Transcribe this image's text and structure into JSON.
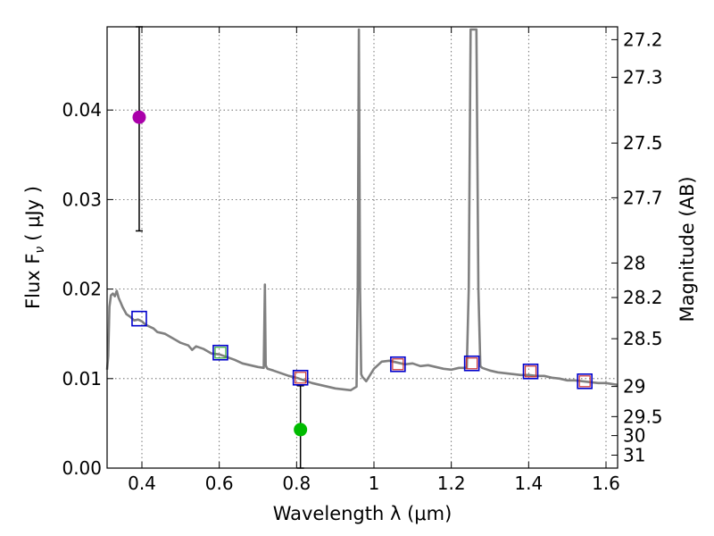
{
  "chart_data": {
    "type": "scatter",
    "xlabel": "Wavelength  λ (μm)",
    "ylabel": "Flux  F",
    "ylabel_sub": "ν",
    "ylabel_unit": "( μJy )",
    "y2label": "Magnitude (AB)",
    "xlim": [
      0.31,
      1.63
    ],
    "ylim": [
      0.0,
      0.0493
    ],
    "x_ticks": [
      0.4,
      0.6,
      0.8,
      1.0,
      1.2,
      1.4,
      1.6
    ],
    "x_tick_labels": [
      "0.4",
      "0.6",
      "0.8",
      "1",
      "1.2",
      "1.4",
      "1.6"
    ],
    "y_ticks": [
      0.0,
      0.01,
      0.02,
      0.03,
      0.04
    ],
    "y_tick_labels": [
      "0.00",
      "0.01",
      "0.02",
      "0.03",
      "0.04"
    ],
    "mag_ticks": [
      27.2,
      27.3,
      27.5,
      27.7,
      28,
      28.2,
      28.5,
      29,
      29.5,
      30,
      31
    ],
    "mag_tick_labels": [
      "27.2",
      "27.3",
      "27.5",
      "27.7",
      "28",
      "28.2",
      "28.5",
      "29",
      "29.5",
      "30",
      "31"
    ],
    "grid": true,
    "colors": {
      "model": "#808080",
      "photometry_box": "#0000cc",
      "model_band_box": "#cc3333",
      "green_model_box": "#33aa33",
      "magenta_point": "#aa00aa",
      "green_point": "#00bb00",
      "errorbar": "#000000"
    },
    "series": [
      {
        "name": "model-spectrum",
        "style": "line",
        "x": [
          0.31,
          0.313,
          0.316,
          0.32,
          0.325,
          0.33,
          0.335,
          0.34,
          0.345,
          0.35,
          0.36,
          0.37,
          0.38,
          0.39,
          0.4,
          0.41,
          0.42,
          0.43,
          0.44,
          0.45,
          0.46,
          0.48,
          0.5,
          0.52,
          0.53,
          0.54,
          0.56,
          0.58,
          0.6,
          0.62,
          0.64,
          0.66,
          0.68,
          0.7,
          0.715,
          0.718,
          0.72,
          0.722,
          0.725,
          0.74,
          0.76,
          0.78,
          0.8,
          0.82,
          0.84,
          0.86,
          0.88,
          0.9,
          0.92,
          0.94,
          0.955,
          0.958,
          0.961,
          0.964,
          0.967,
          0.97,
          0.98,
          1.0,
          1.02,
          1.04,
          1.06,
          1.08,
          1.1,
          1.12,
          1.14,
          1.16,
          1.18,
          1.2,
          1.22,
          1.24,
          1.245,
          1.25,
          1.255,
          1.26,
          1.265,
          1.27,
          1.275,
          1.28,
          1.3,
          1.32,
          1.34,
          1.36,
          1.38,
          1.4,
          1.42,
          1.44,
          1.46,
          1.48,
          1.5,
          1.52,
          1.54,
          1.56,
          1.58,
          1.6,
          1.63
        ],
        "y": [
          0.011,
          0.0125,
          0.018,
          0.0193,
          0.0195,
          0.0192,
          0.0198,
          0.019,
          0.0185,
          0.018,
          0.0172,
          0.0169,
          0.0165,
          0.0166,
          0.0164,
          0.016,
          0.0158,
          0.0156,
          0.0152,
          0.0151,
          0.015,
          0.0145,
          0.014,
          0.0137,
          0.0132,
          0.0136,
          0.0133,
          0.0128,
          0.0127,
          0.0124,
          0.0121,
          0.0117,
          0.0115,
          0.0113,
          0.0112,
          0.0205,
          0.0115,
          0.0113,
          0.0111,
          0.0109,
          0.0106,
          0.0103,
          0.0101,
          0.0098,
          0.0095,
          0.0093,
          0.0091,
          0.0089,
          0.0088,
          0.0087,
          0.0091,
          0.02,
          0.049,
          0.02,
          0.0105,
          0.0102,
          0.0097,
          0.0111,
          0.0119,
          0.012,
          0.0118,
          0.0116,
          0.0117,
          0.0114,
          0.0115,
          0.0113,
          0.0111,
          0.011,
          0.0112,
          0.0112,
          0.02,
          0.049,
          0.049,
          0.049,
          0.049,
          0.02,
          0.0114,
          0.0112,
          0.0109,
          0.0107,
          0.0106,
          0.0105,
          0.0104,
          0.0104,
          0.0103,
          0.0103,
          0.0101,
          0.01,
          0.0098,
          0.0098,
          0.0097,
          0.0096,
          0.0095,
          0.0095,
          0.0093
        ]
      },
      {
        "name": "photometry-boxes",
        "style": "open-square",
        "x": [
          0.393,
          0.603,
          0.81,
          1.062,
          1.253,
          1.405,
          1.545
        ],
        "y": [
          0.0167,
          0.0129,
          0.0101,
          0.0116,
          0.0117,
          0.0108,
          0.0097
        ]
      },
      {
        "name": "measured-points",
        "style": "filled-circle",
        "x": [
          0.393,
          0.81
        ],
        "y": [
          0.0392,
          0.0043
        ],
        "yerr_low": [
          0.0127,
          0.0043
        ],
        "yerr_high": [
          0.0101,
          0.0049
        ]
      }
    ]
  }
}
